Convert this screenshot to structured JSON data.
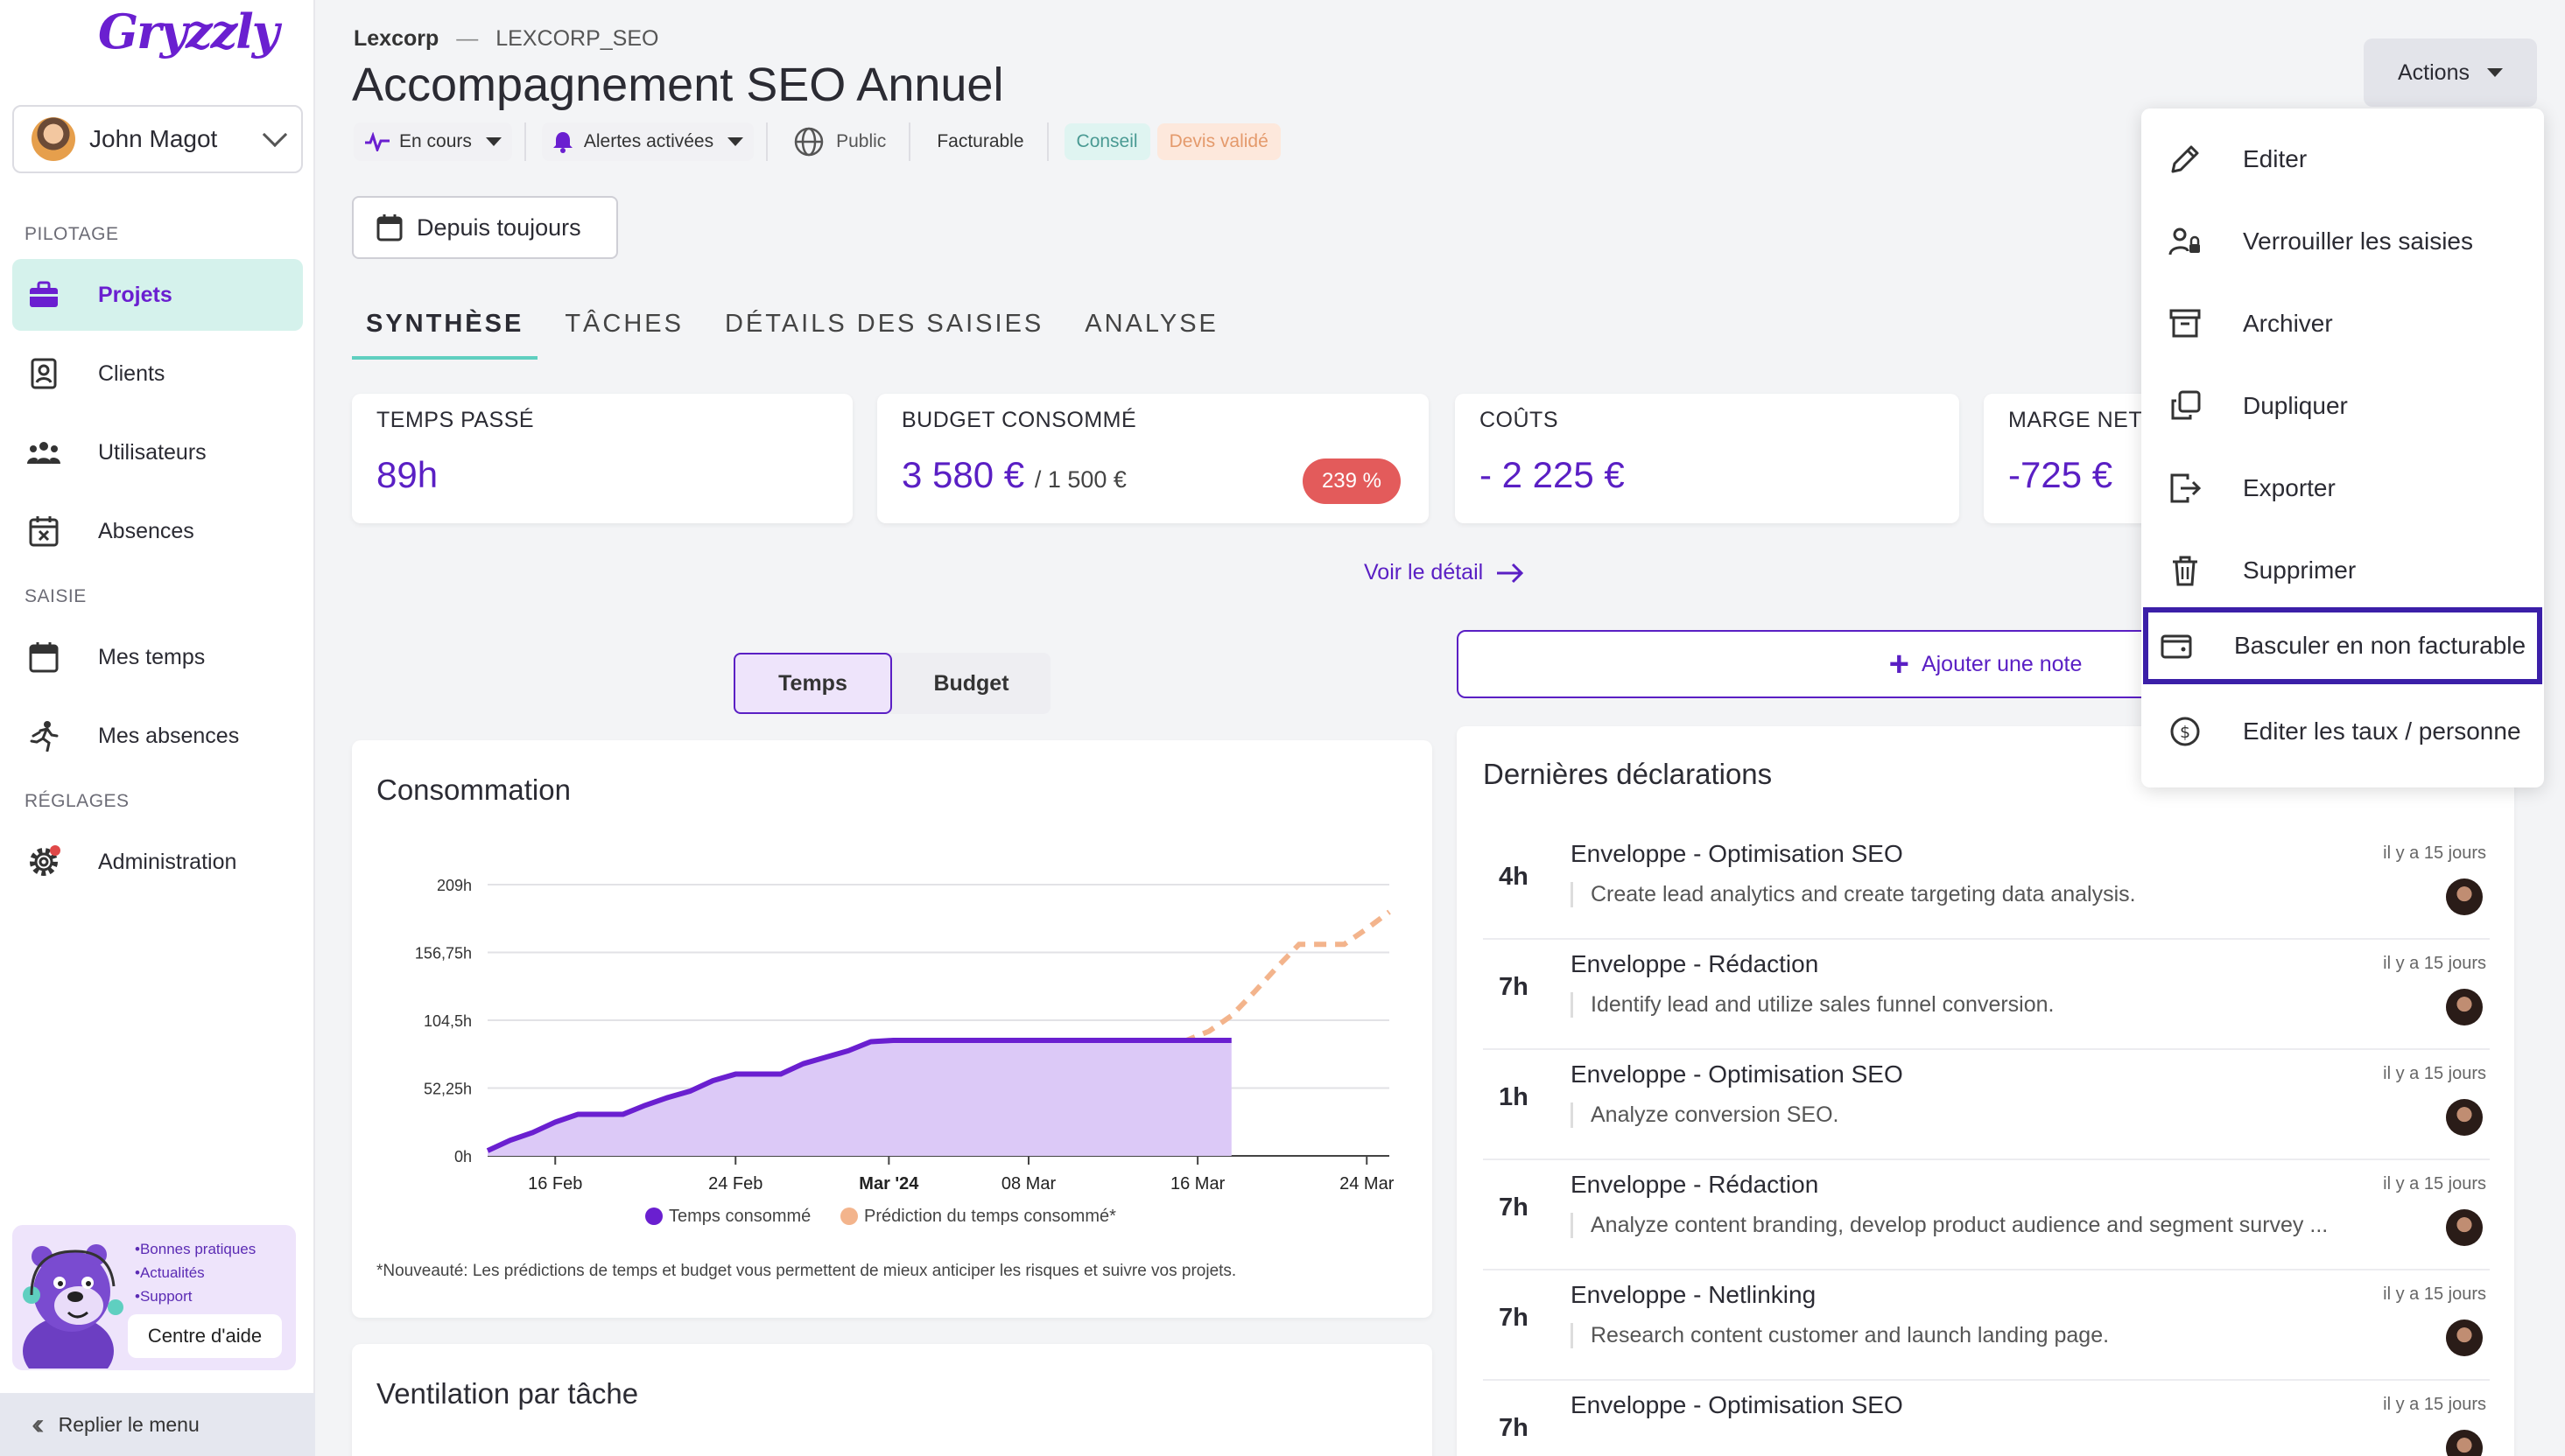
{
  "app": {
    "logo_text": "Gryzzly"
  },
  "user": {
    "name": "John Magot"
  },
  "sidebar": {
    "sections": [
      {
        "label": "PILOTAGE"
      },
      {
        "label": "SAISIE"
      },
      {
        "label": "RÉGLAGES"
      }
    ],
    "items": [
      {
        "label": "Projets",
        "icon": "briefcase-icon",
        "active": true
      },
      {
        "label": "Clients",
        "icon": "contact-book-icon"
      },
      {
        "label": "Utilisateurs",
        "icon": "users-icon"
      },
      {
        "label": "Absences",
        "icon": "calendar-x-icon"
      },
      {
        "label": "Mes temps",
        "icon": "calendar-icon"
      },
      {
        "label": "Mes absences",
        "icon": "running-person-icon"
      },
      {
        "label": "Administration",
        "icon": "gear-icon"
      }
    ],
    "help": {
      "links": [
        "•Bonnes pratiques",
        "•Actualités",
        "•Support"
      ],
      "button": "Centre d'aide"
    },
    "collapse_label": "Replier le menu"
  },
  "header": {
    "breadcrumb_client": "Lexcorp",
    "breadcrumb_sep": "—",
    "breadcrumb_code": "LEXCORP_SEO",
    "title": "Accompagnement SEO Annuel",
    "status": "En cours",
    "alerts": "Alertes activées",
    "visibility": "Public",
    "billing": "Facturable",
    "tags": [
      "Conseil",
      "Devis validé"
    ],
    "date_filter": "Depuis toujours",
    "actions_label": "Actions"
  },
  "tabs": [
    {
      "label": "SYNTHÈSE",
      "active": true
    },
    {
      "label": "TÂCHES"
    },
    {
      "label": "DÉTAILS DES SAISIES"
    },
    {
      "label": "ANALYSE"
    }
  ],
  "kpis": {
    "time": {
      "label": "TEMPS PASSÉ",
      "value": "89h"
    },
    "budget": {
      "label": "BUDGET CONSOMMÉ",
      "value": "3 580 €",
      "total": "/ 1 500 €",
      "badge": "239 %"
    },
    "costs": {
      "label": "COÛTS",
      "value": "- 2 225 €"
    },
    "margin": {
      "label": "MARGE NET",
      "value": "-725 €"
    }
  },
  "detail_link": "Voir le détail",
  "toggle": {
    "options": [
      "Temps",
      "Budget"
    ],
    "selected": "Temps"
  },
  "consumption": {
    "title": "Consommation",
    "footnote": "*Nouveauté: Les prédictions de temps et budget vous permettent de mieux anticiper les risques et suivre vos projets."
  },
  "chart_data": {
    "type": "area",
    "title": "Consommation",
    "x_ticks": [
      "16 Feb",
      "24 Feb",
      "Mar '24",
      "08 Mar",
      "16 Mar",
      "24 Mar"
    ],
    "y_ticks": [
      "0h",
      "52,25h",
      "104,5h",
      "156,75h",
      "209h"
    ],
    "ylim": [
      0,
      209
    ],
    "xlim": [
      0,
      40
    ],
    "series": [
      {
        "name": "Temps consommé",
        "color": "#6a1fd0",
        "x": [
          0,
          1,
          2,
          3,
          4,
          5,
          6,
          7,
          8,
          9,
          10,
          11,
          12,
          13,
          14,
          15,
          16,
          17,
          18,
          19,
          20,
          21,
          22,
          23,
          24,
          25,
          26,
          27,
          28,
          29,
          30,
          31,
          32,
          33
        ],
        "y": [
          4,
          12,
          18,
          26,
          32,
          32,
          32,
          39,
          45,
          50,
          58,
          63,
          63,
          63,
          71,
          76,
          81,
          88,
          89,
          89,
          89,
          89,
          89,
          89,
          89,
          89,
          89,
          89,
          89,
          89,
          89,
          89,
          89,
          89
        ]
      },
      {
        "name": "Prédiction du temps consommé*",
        "color": "#f3b48c",
        "x": [
          29,
          30,
          31,
          32,
          33,
          34,
          35,
          36,
          37,
          38,
          39,
          40
        ],
        "y": [
          89,
          89,
          89,
          96,
          108,
          126,
          145,
          163,
          163,
          163,
          175,
          188
        ]
      }
    ],
    "legend": {
      "position": "bottom"
    },
    "grid": true
  },
  "ventilation": {
    "title": "Ventilation par tâche"
  },
  "add_note": "Ajouter une note",
  "declarations": {
    "title": "Dernières déclarations",
    "items": [
      {
        "hours": "4h",
        "name": "Enveloppe - Optimisation SEO",
        "desc": "Create lead analytics and create targeting data analysis.",
        "time": "il y a 15 jours"
      },
      {
        "hours": "7h",
        "name": "Enveloppe - Rédaction",
        "desc": "Identify lead and utilize sales funnel conversion.",
        "time": "il y a 15 jours"
      },
      {
        "hours": "1h",
        "name": "Enveloppe - Optimisation SEO",
        "desc": "Analyze conversion SEO.",
        "time": "il y a 15 jours"
      },
      {
        "hours": "7h",
        "name": "Enveloppe - Rédaction",
        "desc": "Analyze content branding, develop product audience and segment survey ...",
        "time": "il y a 15 jours"
      },
      {
        "hours": "7h",
        "name": "Enveloppe - Netlinking",
        "desc": "Research content customer and launch landing page.",
        "time": "il y a 15 jours"
      },
      {
        "hours": "7h",
        "name": "Enveloppe - Optimisation SEO",
        "desc": "",
        "time": "il y a 15 jours"
      }
    ]
  },
  "actions_menu": [
    {
      "label": "Editer",
      "icon": "pencil-icon"
    },
    {
      "label": "Verrouiller les saisies",
      "icon": "user-lock-icon"
    },
    {
      "label": "Archiver",
      "icon": "archive-icon"
    },
    {
      "label": "Dupliquer",
      "icon": "duplicate-icon"
    },
    {
      "label": "Exporter",
      "icon": "export-icon"
    },
    {
      "label": "Supprimer",
      "icon": "trash-icon"
    },
    {
      "label": "Basculer en non facturable",
      "icon": "wallet-icon",
      "highlighted": true
    },
    {
      "label": "Editer les taux / personne",
      "icon": "dollar-circle-icon"
    }
  ]
}
